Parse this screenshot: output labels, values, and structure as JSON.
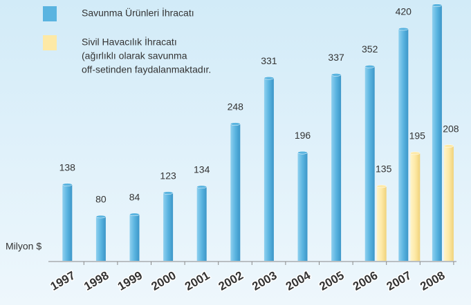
{
  "chart_data": {
    "type": "bar",
    "y_label": "Milyon $",
    "categories": [
      "1997",
      "1998",
      "1999",
      "2000",
      "2001",
      "2002",
      "2003",
      "2004",
      "2005",
      "2006",
      "2007",
      "2008"
    ],
    "series": [
      {
        "name": "Savunma Ürünleri İhracatı",
        "color": "#5ab4e0",
        "values": [
          138,
          80,
          84,
          123,
          134,
          248,
          331,
          196,
          337,
          352,
          420,
          463
        ]
      },
      {
        "name": "Sivil Havacılık İhracatı",
        "color": "#fde9a6",
        "values": [
          null,
          null,
          null,
          null,
          null,
          null,
          null,
          null,
          null,
          135,
          195,
          208
        ]
      }
    ],
    "legend_note": [
      "(ağırlıklı olarak savunma",
      "off-setinden faydalanmaktadır."
    ],
    "ylim": [
      0,
      470
    ]
  }
}
